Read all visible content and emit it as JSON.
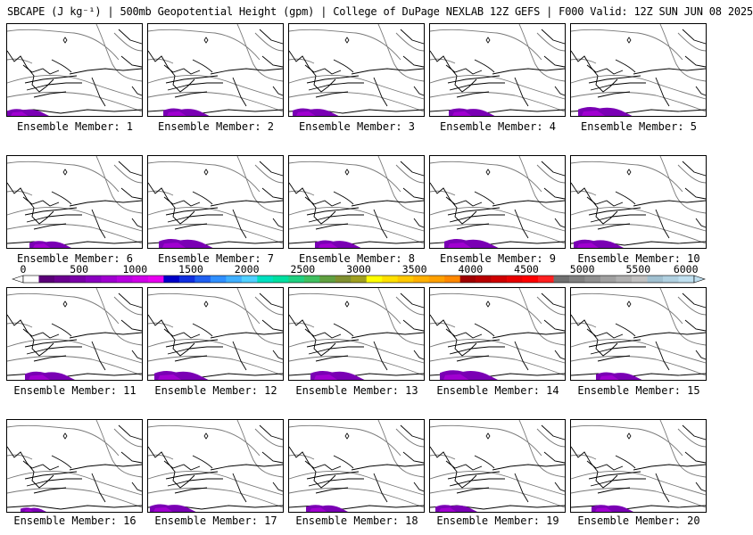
{
  "title": "SBCAPE (J kg⁻¹) | 500mb Geopotential Height (gpm) | College of DuPage NEXLAB 12Z GEFS | F000 Valid: 12Z SUN JUN 08 2025",
  "colorbar": {
    "ticks": [
      "0",
      "500",
      "1000",
      "1500",
      "2000",
      "2500",
      "3000",
      "3500",
      "4000",
      "4500",
      "5000",
      "5500",
      "6000"
    ],
    "colors": [
      "#ffffff",
      "#5a0078",
      "#6a0090",
      "#7a00a8",
      "#8a00c0",
      "#a000d0",
      "#b800e0",
      "#d000e8",
      "#e800f0",
      "#0000c8",
      "#1030e0",
      "#2060f0",
      "#3090ff",
      "#40b0ff",
      "#50d0ff",
      "#00e0c0",
      "#00e0a0",
      "#20d080",
      "#40c060",
      "#60a040",
      "#809030",
      "#a0a020",
      "#ffff00",
      "#ffe000",
      "#ffc800",
      "#ffb000",
      "#ffa000",
      "#ff8800",
      "#a00000",
      "#b80000",
      "#d00000",
      "#e80000",
      "#ff0000",
      "#ff2020",
      "#707070",
      "#808080",
      "#909090",
      "#a0a0a0",
      "#b0b0b0",
      "#c0c0c0",
      "#a0c0d0",
      "#b0d0e0",
      "#c0e0f0"
    ]
  },
  "members": [
    {
      "label": "Ensemble Member: 1",
      "cape_level": 0.3
    },
    {
      "label": "Ensemble Member: 2",
      "cape_level": 0.35
    },
    {
      "label": "Ensemble Member: 3",
      "cape_level": 0.35
    },
    {
      "label": "Ensemble Member: 4",
      "cape_level": 0.35
    },
    {
      "label": "Ensemble Member: 5",
      "cape_level": 0.45
    },
    {
      "label": "Ensemble Member: 6",
      "cape_level": 0.3
    },
    {
      "label": "Ensemble Member: 7",
      "cape_level": 0.45
    },
    {
      "label": "Ensemble Member: 8",
      "cape_level": 0.35
    },
    {
      "label": "Ensemble Member: 9",
      "cape_level": 0.45
    },
    {
      "label": "Ensemble Member: 10",
      "cape_level": 0.4
    },
    {
      "label": "Ensemble Member: 11",
      "cape_level": 0.4
    },
    {
      "label": "Ensemble Member: 12",
      "cape_level": 0.45
    },
    {
      "label": "Ensemble Member: 13",
      "cape_level": 0.45
    },
    {
      "label": "Ensemble Member: 14",
      "cape_level": 0.5
    },
    {
      "label": "Ensemble Member: 15",
      "cape_level": 0.35
    },
    {
      "label": "Ensemble Member: 16",
      "cape_level": 0.1
    },
    {
      "label": "Ensemble Member: 17",
      "cape_level": 0.35
    },
    {
      "label": "Ensemble Member: 18",
      "cape_level": 0.3
    },
    {
      "label": "Ensemble Member: 19",
      "cape_level": 0.3
    },
    {
      "label": "Ensemble Member: 20",
      "cape_level": 0.3
    }
  ],
  "style": {
    "cape_fill": "#7a00b4",
    "cape_fill_light": "#a000d0",
    "border_color": "#000000",
    "contour_color": "#777777"
  }
}
